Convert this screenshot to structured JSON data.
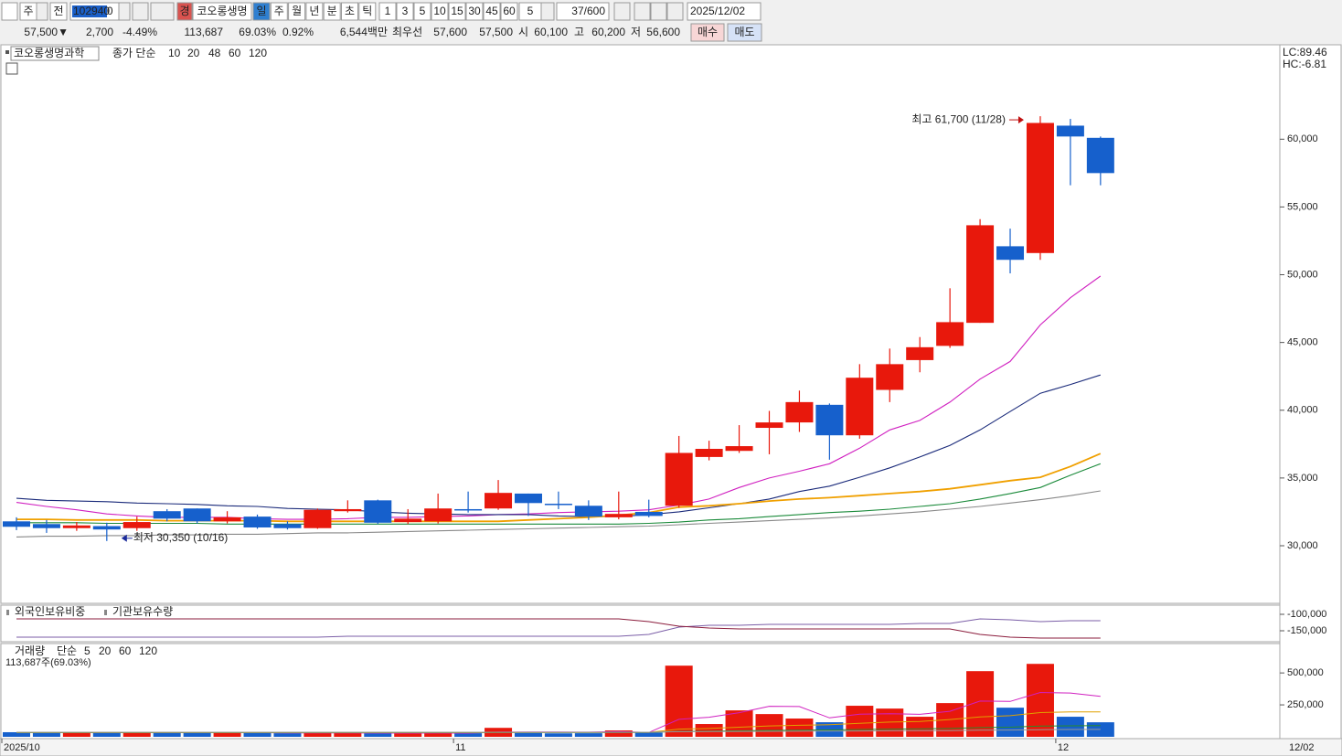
{
  "toolbar": {
    "market": "주",
    "prev": "전",
    "code": "102940",
    "badge": "경",
    "name": "코오롱생명",
    "periods": [
      "일",
      "주",
      "월",
      "년",
      "분",
      "초",
      "틱"
    ],
    "intervals": [
      "1",
      "3",
      "5",
      "10",
      "15",
      "30",
      "45",
      "60"
    ],
    "interval_select": "5",
    "count": "37/600",
    "date": "2025/12/02"
  },
  "quote": {
    "price": "57,500▼",
    "change": "2,700",
    "change_rate": "-4.49%",
    "volume": "113,687",
    "volume_ratio": "69.03%",
    "turnover_rate": "0.92%",
    "amount": "6,544백만",
    "best_label": "최우선",
    "best_ask": "57,600",
    "best_bid": "57,500",
    "open_label": "시",
    "open": "60,100",
    "high_label": "고",
    "high": "60,200",
    "low_label": "저",
    "low": "56,600",
    "buy": "매수",
    "sell": "매도"
  },
  "chart_data": [
    {
      "type": "candlestick",
      "title": "코오롱생명과학",
      "ma_label": "종가 단순",
      "up_color": "#e8180c",
      "down_color": "#1660cc",
      "open": [
        31800,
        31600,
        31300,
        31450,
        31300,
        32550,
        32750,
        31800,
        32150,
        31600,
        31300,
        32550,
        33350,
        31750,
        31800,
        32700,
        32750,
        33850,
        33100,
        32950,
        32100,
        32500,
        32950,
        36550,
        37000,
        38700,
        39100,
        40400,
        38150,
        41500,
        43700,
        44750,
        46450,
        52100,
        51600,
        61000,
        60100
      ],
      "high": [
        32100,
        31900,
        31750,
        31700,
        32150,
        32700,
        32750,
        32550,
        32300,
        31800,
        32750,
        33350,
        33400,
        32700,
        33850,
        34000,
        34850,
        33850,
        34000,
        33350,
        34000,
        33400,
        38100,
        37750,
        38900,
        39950,
        41450,
        40500,
        43400,
        44550,
        45400,
        49000,
        54100,
        53400,
        61700,
        61500,
        60200
      ],
      "low": [
        31150,
        30950,
        31100,
        30350,
        31100,
        31800,
        31650,
        31650,
        31250,
        31200,
        31250,
        32450,
        31600,
        31600,
        31650,
        32450,
        32650,
        32200,
        32700,
        31900,
        31950,
        32100,
        32800,
        36300,
        36850,
        36750,
        38400,
        36350,
        37900,
        40600,
        42800,
        44600,
        46450,
        50100,
        51100,
        56600,
        56600
      ],
      "close": [
        31400,
        31300,
        31500,
        31200,
        31750,
        32000,
        31800,
        32100,
        31350,
        31300,
        32650,
        32700,
        31700,
        32000,
        32750,
        32650,
        33900,
        33150,
        33050,
        32150,
        32350,
        32200,
        36850,
        37150,
        37350,
        39100,
        40600,
        38150,
        42400,
        43400,
        44650,
        46500,
        53650,
        51100,
        61200,
        60200,
        57500
      ],
      "series": [
        {
          "name": "10",
          "color": "#d020c0",
          "values": [
            33200,
            32900,
            32650,
            32350,
            32200,
            32100,
            32100,
            32100,
            32000,
            31950,
            31950,
            32000,
            32100,
            32100,
            32150,
            32200,
            32300,
            32350,
            32450,
            32500,
            32550,
            32650,
            33000,
            33450,
            34300,
            35000,
            35500,
            36050,
            37200,
            38550,
            39250,
            40600,
            42300,
            43600,
            46300,
            48300,
            49900
          ]
        },
        {
          "name": "20",
          "color": "#1a2a7a",
          "values": [
            33500,
            33350,
            33300,
            33250,
            33150,
            33100,
            33050,
            32950,
            32900,
            32750,
            32700,
            32650,
            32500,
            32400,
            32350,
            32300,
            32300,
            32300,
            32200,
            32150,
            32150,
            32300,
            32500,
            32800,
            33100,
            33450,
            34000,
            34400,
            35050,
            35750,
            36550,
            37400,
            38550,
            39900,
            41250,
            41900,
            42600
          ]
        },
        {
          "name": "48",
          "color": "#f0a000",
          "values": [
            31950,
            31950,
            31900,
            31900,
            31900,
            31850,
            31850,
            31850,
            31850,
            31800,
            31800,
            31800,
            31800,
            31800,
            31800,
            31800,
            31800,
            31900,
            32000,
            32100,
            32250,
            32450,
            32850,
            32950,
            33100,
            33300,
            33450,
            33550,
            33700,
            33850,
            34000,
            34200,
            34500,
            34800,
            35050,
            35850,
            36800
          ]
        },
        {
          "name": "60",
          "color": "#1a8a3a",
          "values": [
            31700,
            31700,
            31700,
            31650,
            31650,
            31650,
            31650,
            31600,
            31600,
            31600,
            31600,
            31600,
            31600,
            31600,
            31600,
            31600,
            31600,
            31600,
            31600,
            31600,
            31600,
            31650,
            31750,
            31900,
            32000,
            32150,
            32300,
            32450,
            32550,
            32700,
            32900,
            33100,
            33450,
            33850,
            34300,
            35200,
            36050
          ]
        },
        {
          "name": "120",
          "color": "#888888",
          "values": [
            30650,
            30700,
            30700,
            30750,
            30750,
            30800,
            30800,
            30850,
            30850,
            30900,
            30950,
            30950,
            31000,
            31050,
            31100,
            31150,
            31200,
            31250,
            31300,
            31350,
            31400,
            31450,
            31550,
            31650,
            31750,
            31850,
            31950,
            32050,
            32200,
            32350,
            32500,
            32700,
            32900,
            33150,
            33400,
            33700,
            34050
          ]
        }
      ],
      "ylim": [
        25750,
        66900
      ],
      "yticks": [
        {
          "value": 30000,
          "label": "30,000"
        },
        {
          "value": 35000,
          "label": "35,000"
        },
        {
          "value": 40000,
          "label": "40,000"
        },
        {
          "value": 45000,
          "label": "45,000"
        },
        {
          "value": 50000,
          "label": "50,000"
        },
        {
          "value": 55000,
          "label": "55,000"
        },
        {
          "value": 60000,
          "label": "60,000"
        }
      ],
      "high_annotation": "최고 61,700 (11/28)",
      "low_annotation": "최저 30,350 (10/16)",
      "lc_label": "LC:89.46",
      "hc_label": "HC:-6.81"
    },
    {
      "type": "line",
      "series": [
        {
          "name": "외국인보유비중",
          "color": "#7b5ea7",
          "values": [
            -169400,
            -169400,
            -169400,
            -169400,
            -169400,
            -169400,
            -169400,
            -169400,
            -169400,
            -169400,
            -169400,
            -166700,
            -166700,
            -166700,
            -166700,
            -166700,
            -166700,
            -166700,
            -166700,
            -166700,
            -166700,
            -161100,
            -138900,
            -133300,
            -133300,
            -130600,
            -130600,
            -130600,
            -130600,
            -130600,
            -127800,
            -127800,
            -113900,
            -116700,
            -122200,
            -119400,
            -119400
          ]
        },
        {
          "name": "기관보유수량",
          "color": "#8b1c3c",
          "values": [
            -113900,
            -113900,
            -113900,
            -113900,
            -113900,
            -113900,
            -113900,
            -113900,
            -113900,
            -113900,
            -113900,
            -113900,
            -113900,
            -113900,
            -113900,
            -113900,
            -113900,
            -113900,
            -113900,
            -113900,
            -113900,
            -122200,
            -136100,
            -141700,
            -144400,
            -144400,
            -144400,
            -144400,
            -144400,
            -144400,
            -144400,
            -144400,
            -161100,
            -169400,
            -172200,
            -172200,
            -172200
          ]
        }
      ],
      "ylim": [
        -183300,
        -72200
      ],
      "yticks": [
        {
          "value": -100000,
          "label": "-100,000"
        },
        {
          "value": -150000,
          "label": "-150,000"
        }
      ]
    },
    {
      "type": "bar",
      "title": "거래량",
      "ma_label": "단순",
      "info": "113,687주(69.03%)",
      "categories": [
        "2025/10",
        null,
        null,
        null,
        null,
        null,
        null,
        null,
        null,
        null,
        null,
        null,
        null,
        null,
        null,
        "11",
        null,
        null,
        null,
        null,
        null,
        null,
        null,
        null,
        null,
        null,
        null,
        null,
        null,
        null,
        null,
        null,
        null,
        null,
        null,
        "12",
        null
      ],
      "x_end_label": "12/02",
      "values": [
        36000,
        30000,
        33000,
        30000,
        38000,
        30000,
        35000,
        32000,
        30000,
        28000,
        30000,
        30000,
        28000,
        27000,
        30000,
        28000,
        70000,
        30000,
        27000,
        28000,
        50000,
        32000,
        557000,
        100000,
        207000,
        178000,
        143000,
        114000,
        243000,
        221000,
        157000,
        264000,
        514000,
        228000,
        571000,
        157000,
        113687
      ],
      "series": [
        {
          "name": "5",
          "color": "#d020c0",
          "values": [
            34000,
            33500,
            33000,
            32500,
            33400,
            32200,
            33200,
            33600,
            33000,
            31000,
            31000,
            31000,
            29600,
            28600,
            29000,
            28600,
            36600,
            37000,
            37000,
            36600,
            41000,
            33400,
            137000,
            153000,
            189000,
            239000,
            237000,
            148000,
            177000,
            180000,
            176000,
            200000,
            280000,
            277000,
            347000,
            343000,
            317000
          ]
        },
        {
          "name": "20",
          "color": "#e0a000",
          "values": [
            33000,
            33000,
            33000,
            33000,
            33000,
            33000,
            33000,
            33000,
            33000,
            33000,
            33000,
            33000,
            33000,
            33000,
            33000,
            33000,
            34000,
            34000,
            34000,
            34000,
            35000,
            35000,
            60000,
            65000,
            75000,
            85000,
            90000,
            95000,
            105000,
            115000,
            120000,
            135000,
            155000,
            165000,
            190000,
            195000,
            195000
          ]
        },
        {
          "name": "60",
          "color": "#2a8a2a",
          "values": [
            34000,
            34000,
            34000,
            34000,
            34000,
            34000,
            34000,
            34000,
            34000,
            34000,
            34000,
            34000,
            34000,
            34000,
            34000,
            34000,
            34000,
            34000,
            34000,
            34000,
            34000,
            34000,
            42000,
            44000,
            47000,
            50000,
            52000,
            54000,
            57000,
            60000,
            62000,
            65000,
            72000,
            75000,
            84000,
            86000,
            88000
          ]
        },
        {
          "name": "120",
          "color": "#999999",
          "values": [
            36000,
            36000,
            36000,
            36000,
            36000,
            36000,
            36000,
            36000,
            36000,
            36000,
            36000,
            36000,
            36000,
            36000,
            36000,
            36000,
            36000,
            36000,
            36000,
            36000,
            36000,
            36000,
            40000,
            41000,
            42000,
            43000,
            44000,
            45000,
            46000,
            47000,
            48000,
            49000,
            52000,
            53000,
            56000,
            57000,
            58000
          ]
        }
      ],
      "ylim": [
        0,
        730000
      ],
      "yticks": [
        {
          "value": 250000,
          "label": "250,000"
        },
        {
          "value": 500000,
          "label": "500,000"
        }
      ]
    }
  ]
}
